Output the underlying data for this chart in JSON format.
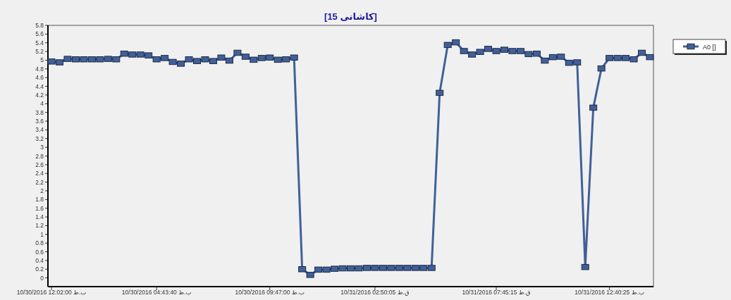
{
  "chart_data": {
    "type": "line",
    "title": "[کاشانی 15]",
    "series": [
      {
        "name": "A0 []",
        "color": "#41609a",
        "values": [
          4.97,
          4.95,
          5.03,
          5.02,
          5.02,
          5.02,
          5.02,
          5.03,
          5.02,
          5.15,
          5.13,
          5.13,
          5.11,
          5.02,
          5.05,
          4.96,
          4.92,
          5.02,
          4.98,
          5.02,
          4.98,
          5.06,
          4.99,
          5.17,
          5.08,
          5.01,
          5.05,
          5.06,
          5.01,
          5.02,
          5.06,
          0.2,
          0.07,
          0.19,
          0.19,
          0.21,
          0.22,
          0.22,
          0.22,
          0.23,
          0.23,
          0.23,
          0.23,
          0.23,
          0.23,
          0.23,
          0.23,
          0.23,
          4.25,
          5.35,
          5.41,
          5.21,
          5.13,
          5.19,
          5.26,
          5.21,
          5.24,
          5.21,
          5.21,
          5.14,
          5.15,
          4.99,
          5.07,
          5.08,
          4.94,
          4.95,
          0.25,
          3.91,
          4.81,
          5.05,
          5.05,
          5.05,
          5.02,
          5.17,
          5.07
        ]
      }
    ],
    "categories": [
      "10/30/2016  12:02:00 ب.ظ",
      null,
      null,
      null,
      null,
      null,
      null,
      null,
      null,
      null,
      null,
      null,
      null,
      "10/30/2016  04:43:40 ب.ظ",
      null,
      null,
      null,
      null,
      null,
      null,
      null,
      null,
      null,
      null,
      null,
      null,
      null,
      "10/30/2016  09:47:00 ب.ظ",
      null,
      null,
      null,
      null,
      null,
      null,
      null,
      null,
      null,
      null,
      null,
      null,
      "10/31/2016  02:50:05 ق.ظ",
      null,
      null,
      null,
      null,
      null,
      null,
      null,
      null,
      null,
      null,
      null,
      null,
      null,
      null,
      "10/31/2016  07:45:15 ق.ظ",
      null,
      null,
      null,
      null,
      null,
      null,
      null,
      null,
      null,
      null,
      null,
      null,
      null,
      "10/31/2016  12:40:25 ب.ظ",
      null,
      null,
      null,
      null,
      null
    ],
    "ylim": [
      -0.2,
      5.8
    ],
    "yticks": [
      0,
      0.2,
      0.4,
      0.6,
      0.8,
      1,
      1.2,
      1.4,
      1.6,
      1.8,
      2,
      2.2,
      2.4,
      2.6,
      2.8,
      3,
      3.2,
      3.4,
      3.6,
      3.8,
      4,
      4.2,
      4.4,
      4.6,
      4.8,
      5,
      5.2,
      5.4,
      5.6,
      5.8
    ],
    "legend": "top right",
    "marker": "square",
    "line_style": "solid"
  }
}
